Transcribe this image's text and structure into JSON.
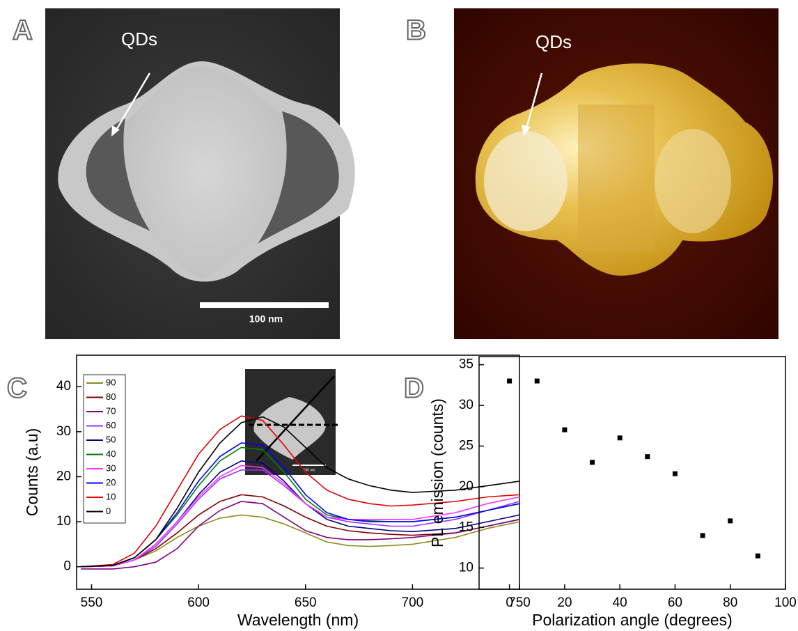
{
  "panel_labels": [
    "A",
    "B",
    "C",
    "D"
  ],
  "images": [
    {
      "annotation": "QDs",
      "scale_label": "100 nm"
    },
    {
      "annotation": "QDs"
    }
  ],
  "chart_data": [
    {
      "type": "line",
      "x_label": "Wavelength (nm)",
      "y_label": "Counts  (a.u)",
      "inset_scale_label": "100 nm",
      "x": [
        545,
        560,
        570,
        580,
        590,
        600,
        610,
        620,
        630,
        640,
        650,
        660,
        670,
        680,
        690,
        700,
        720,
        735,
        750
      ],
      "xlim": [
        543,
        750
      ],
      "xticks": [
        550,
        600,
        650,
        700,
        750
      ],
      "ylim": [
        -5,
        47
      ],
      "yticks": [
        0,
        10,
        20,
        30,
        40
      ],
      "legend": "upper left",
      "series": [
        {
          "name": "90",
          "color": "#8c8c1e",
          "values": [
            0,
            0.2,
            1.5,
            3.5,
            6.5,
            9,
            10.8,
            11.5,
            11,
            9.5,
            7.5,
            5.5,
            4.7,
            4.5,
            4.7,
            5,
            6.5,
            8.5,
            10
          ]
        },
        {
          "name": "80",
          "color": "#800000",
          "values": [
            0,
            0.2,
            1.5,
            4,
            7.5,
            11.5,
            14.5,
            16,
            15.5,
            13.5,
            11,
            9,
            8,
            7.5,
            7.2,
            7,
            7.5,
            9,
            10.5
          ]
        },
        {
          "name": "70",
          "color": "#800080",
          "values": [
            -0.5,
            -0.5,
            0,
            1,
            4,
            9,
            12.5,
            14.5,
            14,
            11,
            8,
            6.5,
            6,
            6,
            6.2,
            6.5,
            7.5,
            9,
            10.5
          ]
        },
        {
          "name": "60",
          "color": "#9933ff",
          "values": [
            0,
            0.2,
            1.5,
            4.5,
            9.5,
            15,
            19.5,
            21.5,
            21.5,
            18,
            14,
            11,
            10,
            9.5,
            9,
            9,
            10.5,
            12.5,
            14.5
          ]
        },
        {
          "name": "50",
          "color": "#000080",
          "values": [
            0,
            0.2,
            1.5,
            5,
            10,
            16,
            21,
            23.5,
            23,
            19,
            14,
            10.5,
            9,
            8.5,
            8,
            7.8,
            8.5,
            10,
            11.5
          ]
        },
        {
          "name": "40",
          "color": "#008000",
          "values": [
            0,
            0.3,
            2,
            6,
            11.5,
            18,
            23.5,
            26.5,
            26,
            21,
            15,
            11.5,
            10.5,
            10.2,
            10,
            10,
            11,
            12.5,
            14
          ]
        },
        {
          "name": "30",
          "color": "#ff33ff",
          "values": [
            0,
            0.2,
            1.5,
            5,
            10,
            15.5,
            20,
            22.5,
            22,
            18.5,
            14,
            11,
            10.5,
            10.5,
            10.5,
            10.5,
            12,
            14,
            15.5
          ]
        },
        {
          "name": "20",
          "color": "#0000ff",
          "values": [
            0,
            0.3,
            2,
            6,
            12,
            19,
            24.5,
            27.5,
            27,
            22,
            16,
            12,
            10.5,
            10,
            10,
            10,
            11,
            12.5,
            14
          ]
        },
        {
          "name": "10",
          "color": "#e00000",
          "values": [
            0,
            0.5,
            3,
            9,
            17,
            25,
            30.5,
            33.5,
            32.5,
            27,
            21,
            17,
            15,
            14,
            13.5,
            13.7,
            14.5,
            15.5,
            16
          ]
        },
        {
          "name": "0",
          "color": "#000000",
          "values": [
            0,
            0.3,
            2,
            6,
            13,
            21,
            27.5,
            32,
            33.3,
            31,
            26.5,
            22,
            19.5,
            18,
            17,
            16.5,
            17,
            18,
            19
          ]
        }
      ]
    },
    {
      "type": "scatter",
      "x_label": "Polarization angle (degrees)",
      "y_label": "PL emission (counts)",
      "x": [
        0,
        10,
        20,
        30,
        40,
        50,
        60,
        70,
        80,
        90
      ],
      "values": [
        33,
        33,
        27,
        23,
        26,
        23.7,
        21.6,
        14,
        15.8,
        11.5
      ],
      "color": "#000000",
      "xlim": [
        -11,
        100
      ],
      "xticks": [
        0,
        20,
        40,
        60,
        80,
        100
      ],
      "ylim": [
        7.4,
        36
      ],
      "yticks": [
        10,
        15,
        20,
        25,
        30,
        35
      ]
    }
  ]
}
